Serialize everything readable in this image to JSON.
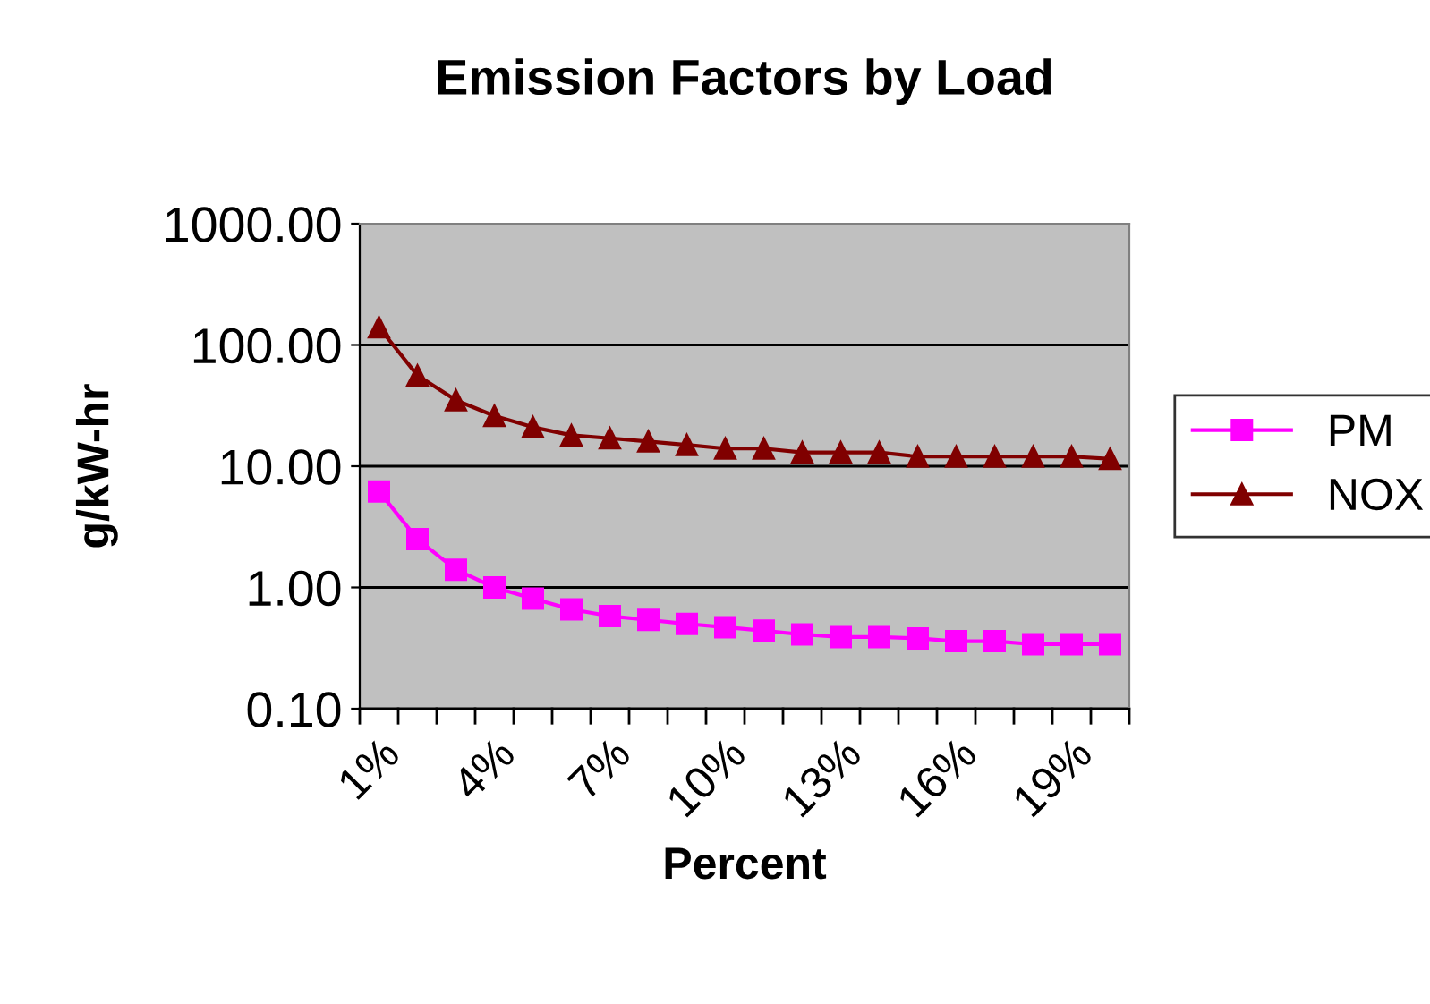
{
  "chart_data": {
    "type": "line",
    "title": "Emission Factors by Load",
    "xlabel": "Percent",
    "ylabel": "g/kW-hr",
    "categories": [
      "1%",
      null,
      null,
      "4%",
      null,
      null,
      "7%",
      null,
      null,
      "10%",
      null,
      null,
      "13%",
      null,
      null,
      "16%",
      null,
      null,
      "19%",
      null
    ],
    "series": [
      {
        "name": "PM",
        "color": "#ff00ff",
        "marker": "square",
        "values": [
          6.2,
          2.5,
          1.4,
          1.0,
          0.81,
          0.66,
          0.58,
          0.54,
          0.5,
          0.47,
          0.44,
          0.41,
          0.39,
          0.39,
          0.38,
          0.36,
          0.36,
          0.34,
          0.34,
          0.34
        ]
      },
      {
        "name": "NOX",
        "color": "#800000",
        "marker": "triangle",
        "values": [
          140,
          56,
          35,
          26,
          21,
          18,
          17,
          16,
          15,
          14,
          14,
          13,
          13,
          13,
          12,
          12,
          12,
          12,
          12,
          11.5
        ]
      }
    ],
    "log": "y",
    "ylim": [
      0.1,
      1000
    ],
    "yticks": [
      {
        "value": 0.1,
        "label": "0.10"
      },
      {
        "value": 1,
        "label": "1.00"
      },
      {
        "value": 10,
        "label": "10.00"
      },
      {
        "value": 100,
        "label": "100.00"
      },
      {
        "value": 1000,
        "label": "1000.00"
      }
    ],
    "grid": "y",
    "legend": "right",
    "line_style": "solid"
  }
}
